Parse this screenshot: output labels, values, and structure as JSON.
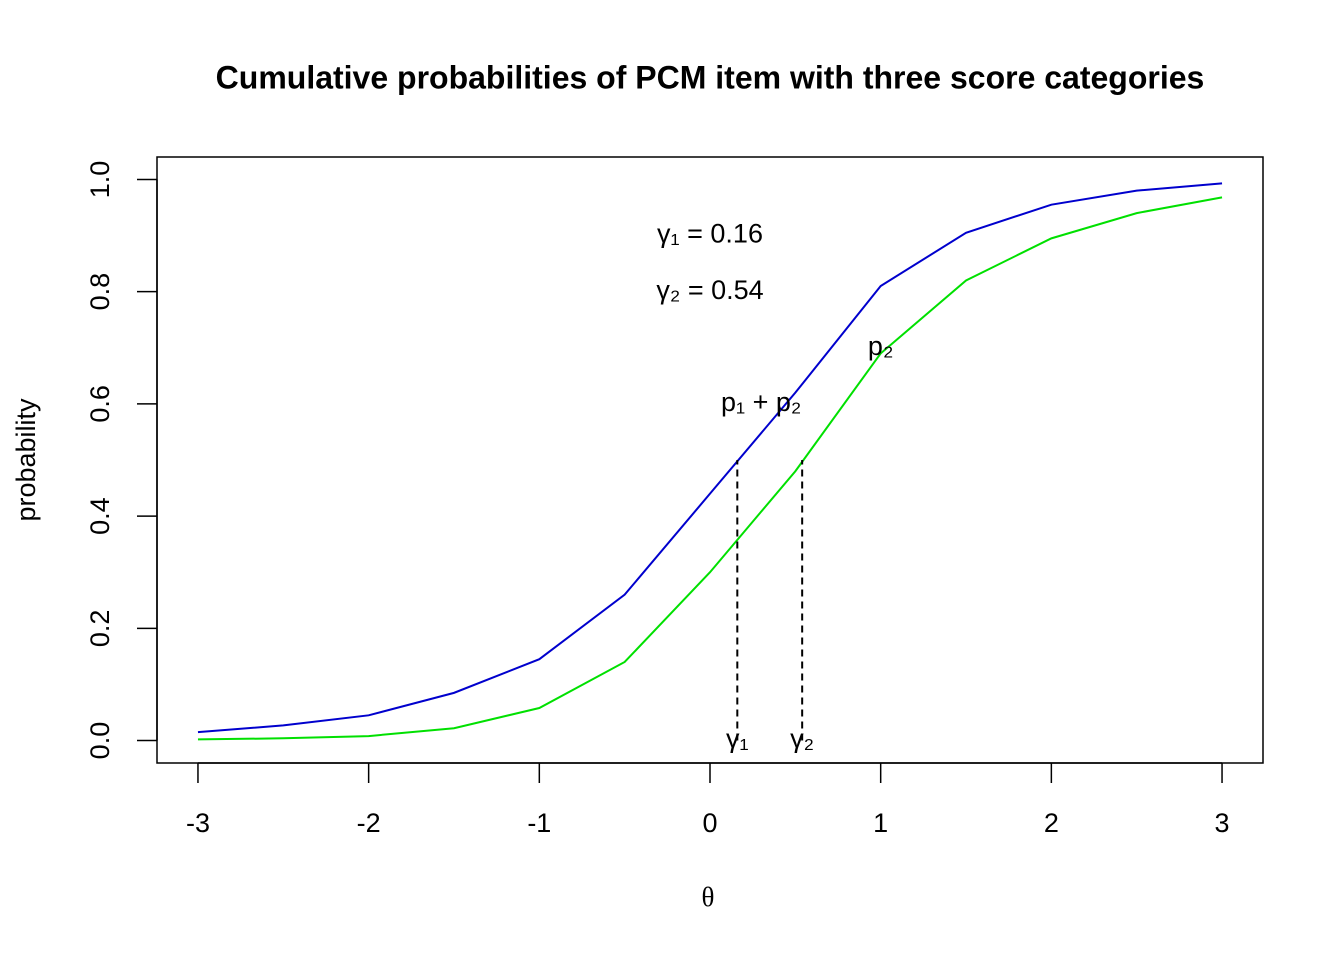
{
  "chart_data": {
    "type": "line",
    "title": "Cumulative probabilities of PCM item with three score categories",
    "xlabel": "θ",
    "ylabel": "probability",
    "x": [
      -3,
      -2.5,
      -2,
      -1.5,
      -1,
      -0.5,
      0,
      0.5,
      1,
      1.5,
      2,
      2.5,
      3
    ],
    "series": [
      {
        "color": "#0000cd",
        "values": [
          0.015,
          0.027,
          0.045,
          0.085,
          0.145,
          0.26,
          0.44,
          0.62,
          0.81,
          0.905,
          0.955,
          0.98,
          0.993
        ]
      },
      {
        "color": "#00e000",
        "values": [
          0.002,
          0.004,
          0.008,
          0.022,
          0.058,
          0.14,
          0.3,
          0.48,
          0.69,
          0.82,
          0.895,
          0.94,
          0.968
        ]
      }
    ],
    "reference_lines": [
      {
        "x": 0.16,
        "y": 0.5
      },
      {
        "x": 0.54,
        "y": 0.5
      }
    ],
    "annotations": [
      {
        "text": "γ₁ = 0.16",
        "x": 0,
        "y": 0.9
      },
      {
        "text": "γ₂ = 0.54",
        "x": 0,
        "y": 0.8
      },
      {
        "text": "p₁ + p₂",
        "x": 0.3,
        "y": 0.6
      },
      {
        "text": "p₂",
        "x": 1,
        "y": 0.7
      },
      {
        "text": "γ₁",
        "x": 0.16,
        "y": 0
      },
      {
        "text": "γ₂",
        "x": 0.54,
        "y": 0
      }
    ],
    "xlim": [
      -3.24,
      3.24
    ],
    "ylim": [
      -0.04,
      1.04
    ],
    "xticks": [
      -3,
      -2,
      -1,
      0,
      1,
      2,
      3
    ],
    "yticks": [
      {
        "value": 0,
        "label": "0.0"
      },
      0.2,
      0.4,
      0.6,
      0.8,
      {
        "value": 1,
        "label": "1.0"
      }
    ]
  }
}
